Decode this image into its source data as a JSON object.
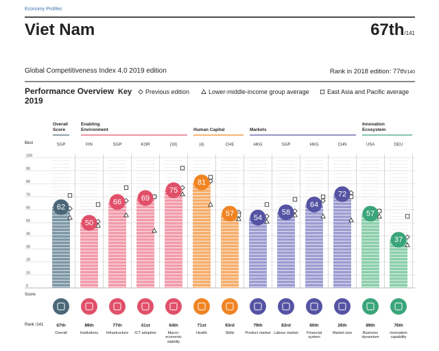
{
  "header": {
    "source": "Economy Profiles",
    "country": "Viet Nam",
    "rank": "67th",
    "rank_total": "/141",
    "edition": "Global Competitiveness Index 4.0 2019 edition",
    "previous_rank": "Rank in 2018 edition: 77th",
    "previous_total": "/140"
  },
  "chart_data": {
    "type": "bar",
    "title": "Performance Overview 2019",
    "legend_title": "Key",
    "ylabel": "Score",
    "ylim": [
      0,
      100
    ],
    "yticks": [
      0,
      10,
      20,
      30,
      40,
      50,
      60,
      70,
      80,
      90,
      100
    ],
    "grid": true,
    "best_label": "Best",
    "rank_label": "Rank /141",
    "groups": [
      {
        "name": "Overall Score",
        "count": 1,
        "color": "#4b6878",
        "bar_color": "#7d97a5"
      },
      {
        "name": "Enabling Environment",
        "count": 4,
        "color": "#e1506a",
        "bar_color": "#f29bab"
      },
      {
        "name": "Human Capital",
        "count": 2,
        "color": "#f08423",
        "bar_color": "#f6ae6c"
      },
      {
        "name": "Markets",
        "count": 4,
        "color": "#5553a3",
        "bar_color": "#9d9cd1"
      },
      {
        "name": "Innovation Ecosystem",
        "count": 2,
        "color": "#3aa57a",
        "bar_color": "#8bcfab"
      }
    ],
    "categories": [
      "Overall",
      "Institutions",
      "Infrastructure",
      "ICT adoption",
      "Macro-economic stability",
      "Health",
      "Skills",
      "Product market",
      "Labour market",
      "Financial system",
      "Market size",
      "Business dynamism",
      "Innovation capability"
    ],
    "best": [
      "SGP",
      "FIN",
      "SGP",
      "KOR",
      "(33)",
      "(4)",
      "CHE",
      "HKG",
      "SGP",
      "HKG",
      "CHN",
      "USA",
      "DEU"
    ],
    "ranks": [
      "67th",
      "89th",
      "77th",
      "41st",
      "64th",
      "71st",
      "93rd",
      "79th",
      "83rd",
      "60th",
      "26th",
      "89th",
      "76th"
    ],
    "values": [
      62,
      50,
      66,
      69,
      75,
      81,
      57,
      54,
      58,
      64,
      72,
      57,
      37
    ],
    "series": [
      {
        "name": "Previous edition",
        "marker": "diamond",
        "color": "#222222",
        "values": [
          61,
          51,
          67,
          70,
          77,
          82,
          58,
          55,
          59,
          67,
          73,
          59,
          39
        ]
      },
      {
        "name": "Lower-middle-income group average",
        "marker": "triangle",
        "color": "#222222",
        "values": [
          54,
          48,
          56,
          44,
          72,
          64,
          53,
          51,
          56,
          55,
          52,
          55,
          33
        ]
      },
      {
        "name": "East Asia and Pacific average",
        "marker": "square",
        "color": "#222222",
        "values": [
          71,
          64,
          77,
          70,
          92,
          85,
          56,
          64,
          68,
          70,
          70,
          59,
          55
        ]
      }
    ]
  }
}
